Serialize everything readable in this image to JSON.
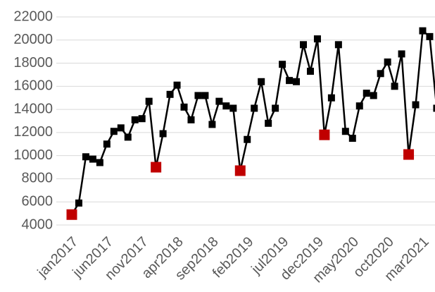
{
  "chart_data": {
    "type": "line",
    "categories": [
      "jan2017",
      null,
      null,
      null,
      null,
      "jun2017",
      null,
      null,
      null,
      null,
      "nov2017",
      null,
      null,
      null,
      null,
      "apr2018",
      null,
      null,
      null,
      null,
      "sep2018",
      null,
      null,
      null,
      null,
      "feb2019",
      null,
      null,
      null,
      null,
      "jul2019",
      null,
      null,
      null,
      null,
      "dec2019",
      null,
      null,
      null,
      null,
      "may2020",
      null,
      null,
      null,
      null,
      "oct2020",
      null,
      null,
      null,
      null,
      "mar2021",
      null,
      null
    ],
    "series": [
      {
        "color": "#000000",
        "values": [
          4900,
          5900,
          9900,
          9700,
          9400,
          11000,
          12100,
          12400,
          11600,
          13100,
          13200,
          14700,
          9000,
          11900,
          15300,
          16100,
          14200,
          13100,
          15200,
          15200,
          12700,
          14700,
          14300,
          14100,
          8700,
          11400,
          14100,
          16400,
          12800,
          14100,
          17900,
          16500,
          16400,
          19600,
          17300,
          20100,
          11800,
          15000,
          19600,
          12100,
          11500,
          14300,
          15400,
          15200,
          17100,
          18100,
          16000,
          18800,
          10100,
          14400,
          20800,
          20300,
          14100
        ],
        "point_colors": [
          "#c00000",
          "#000000",
          "#000000",
          "#000000",
          "#000000",
          "#000000",
          "#000000",
          "#000000",
          "#000000",
          "#000000",
          "#000000",
          "#000000",
          "#c00000",
          "#000000",
          "#000000",
          "#000000",
          "#000000",
          "#000000",
          "#000000",
          "#000000",
          "#000000",
          "#000000",
          "#000000",
          "#000000",
          "#c00000",
          "#000000",
          "#000000",
          "#000000",
          "#000000",
          "#000000",
          "#000000",
          "#000000",
          "#000000",
          "#000000",
          "#000000",
          "#000000",
          "#c00000",
          "#000000",
          "#000000",
          "#000000",
          "#000000",
          "#000000",
          "#000000",
          "#000000",
          "#000000",
          "#000000",
          "#000000",
          "#000000",
          "#c00000",
          "#000000",
          "#000000",
          "#000000",
          "#000000"
        ]
      }
    ],
    "ylim": [
      4000,
      22000
    ],
    "yticks": [
      4000,
      6000,
      8000,
      10000,
      12000,
      14000,
      16000,
      18000,
      20000,
      22000
    ],
    "grid": true
  }
}
